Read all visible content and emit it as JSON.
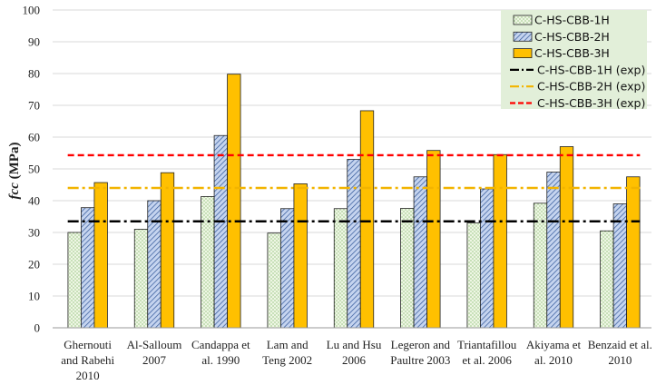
{
  "chart_data": {
    "type": "bar",
    "ylabel": "fcc (MPa)",
    "ylabel_italic": "fcc",
    "ylabel_unit": " (MPa)",
    "ylim": [
      0,
      100
    ],
    "yticks": [
      "0",
      "10",
      "20",
      "30",
      "40",
      "50",
      "60",
      "70",
      "80",
      "90",
      "100"
    ],
    "grid": "horizontal",
    "legend_position": "top-right",
    "categories": [
      [
        "Ghernouti",
        "and Rabehi",
        "2010"
      ],
      [
        "Al-Salloum",
        "2007"
      ],
      [
        "Candappa et",
        "al. 1990"
      ],
      [
        "Lam and",
        "Teng 2002"
      ],
      [
        "Lu and Hsu",
        "2006"
      ],
      [
        "Legeron and",
        "Paultre 2003"
      ],
      [
        "Triantafillou",
        "et al. 2006"
      ],
      [
        "Akiyama et",
        "al.  2010"
      ],
      [
        "Benzaid et al.",
        "2010"
      ]
    ],
    "series": [
      {
        "name": "C-HS-CBB-1H",
        "fill": "#eef6e4",
        "pattern": "dots",
        "values": [
          30.0,
          31.0,
          41.3,
          29.8,
          37.5,
          37.6,
          33.0,
          39.2,
          30.5
        ]
      },
      {
        "name": "C-HS-CBB-2H",
        "fill": "#c5d4ef",
        "pattern": "hatch",
        "values": [
          37.8,
          40.0,
          60.5,
          37.5,
          53.0,
          47.5,
          43.7,
          49.0,
          39.0
        ]
      },
      {
        "name": "C-HS-CBB-3H",
        "fill": "#ffc000",
        "pattern": "solid",
        "values": [
          45.7,
          48.8,
          79.8,
          45.3,
          68.3,
          55.8,
          54.5,
          57.0,
          47.5
        ]
      }
    ],
    "reference_lines": [
      {
        "name": "C-HS-CBB-1H (exp)",
        "value": 33.5,
        "color": "#000000",
        "dash": "dashdot"
      },
      {
        "name": "C-HS-CBB-2H (exp)",
        "value": 44.0,
        "color": "#f2b400",
        "dash": "dashdot"
      },
      {
        "name": "C-HS-CBB-3H (exp)",
        "value": 54.3,
        "color": "#ff0000",
        "dash": "dashed"
      }
    ],
    "colors": {
      "legend_bg": "#e2efd9",
      "grid": "#d9d9d9",
      "bar_edge": "#222222",
      "hatch": "#2f5597",
      "dots": "#6aa84f"
    }
  }
}
